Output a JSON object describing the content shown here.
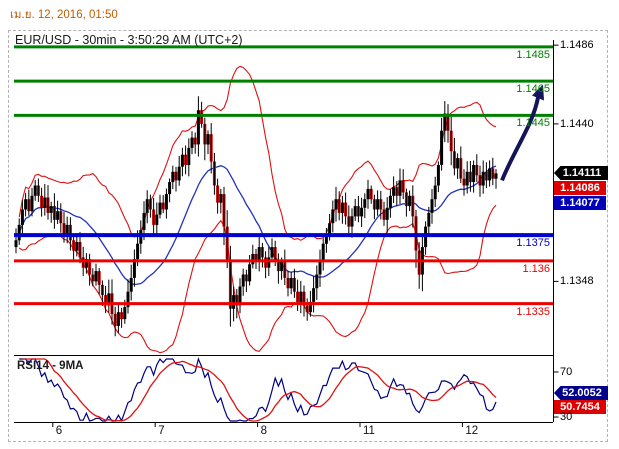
{
  "header": {
    "datetime": "เม.ย. 12, 2016, 01:50"
  },
  "colors": {
    "green_level": "#008000",
    "red_level": "#ee0000",
    "blue_level": "#0000cc",
    "band_red": "#dd1111",
    "mid_blue": "#2233bb",
    "candle_up": "#000000",
    "candle_down": "#cc0000",
    "rsi_line": "#000080",
    "rsi_ma": "#dd1111",
    "axis": "#000000",
    "arrow": "#14145a",
    "date_text": "#bf5b00"
  },
  "chart_data": {
    "type": "candlestick",
    "title": "EUR/USD - 30min - 3:50:29 AM (UTC+2)",
    "symbol": "EUR/USD",
    "timeframe": "30min",
    "ylim": [
      1.1305,
      1.1489
    ],
    "y_axis_ticks": [
      {
        "label": "1.1486",
        "value": 1.1486
      },
      {
        "label": "1.1440",
        "value": 1.144
      },
      {
        "label": "1.1348",
        "value": 1.1348
      }
    ],
    "x_axis_ticks": [
      {
        "label": "6",
        "index": 12
      },
      {
        "label": "7",
        "index": 44
      },
      {
        "label": "8",
        "index": 76
      },
      {
        "label": "11",
        "index": 108
      },
      {
        "label": "12",
        "index": 140
      }
    ],
    "closes": [
      1.1372,
      1.1381,
      1.139,
      1.1396,
      1.1389,
      1.1398,
      1.1404,
      1.1398,
      1.1391,
      1.1397,
      1.1388,
      1.1392,
      1.1384,
      1.1389,
      1.1382,
      1.1376,
      1.1381,
      1.1372,
      1.1366,
      1.1371,
      1.1362,
      1.1356,
      1.1361,
      1.1352,
      1.1348,
      1.1354,
      1.1346,
      1.134,
      1.1334,
      1.1341,
      1.1329,
      1.1322,
      1.133,
      1.1326,
      1.1333,
      1.1342,
      1.135,
      1.1361,
      1.137,
      1.1378,
      1.1388,
      1.1396,
      1.139,
      1.1381,
      1.1387,
      1.1394,
      1.139,
      1.1399,
      1.1406,
      1.1412,
      1.1407,
      1.1415,
      1.1422,
      1.1416,
      1.1426,
      1.1432,
      1.1428,
      1.1448,
      1.144,
      1.1428,
      1.1434,
      1.1418,
      1.1404,
      1.1394,
      1.1399,
      1.138,
      1.136,
      1.1332,
      1.134,
      1.1334,
      1.1345,
      1.1352,
      1.1348,
      1.1358,
      1.1364,
      1.136,
      1.1368,
      1.1362,
      1.1356,
      1.1362,
      1.1368,
      1.136,
      1.1354,
      1.136,
      1.135,
      1.1344,
      1.135,
      1.1342,
      1.1336,
      1.1342,
      1.1334,
      1.133,
      1.1336,
      1.1344,
      1.1352,
      1.136,
      1.137,
      1.1376,
      1.1382,
      1.139,
      1.1396,
      1.1388,
      1.1394,
      1.1386,
      1.138,
      1.1386,
      1.1392,
      1.1386,
      1.1391,
      1.1396,
      1.1402,
      1.1396,
      1.139,
      1.1396,
      1.139,
      1.1384,
      1.1391,
      1.1398,
      1.1403,
      1.1398,
      1.1407,
      1.14,
      1.1392,
      1.1398,
      1.1386,
      1.1366,
      1.1352,
      1.1368,
      1.138,
      1.1388,
      1.1396,
      1.1404,
      1.1416,
      1.1436,
      1.1446,
      1.1436,
      1.1424,
      1.1414,
      1.142,
      1.1408,
      1.1404,
      1.1412,
      1.1406,
      1.1416,
      1.141,
      1.1404,
      1.1412,
      1.1407,
      1.1414,
      1.1408,
      1.14111
    ],
    "levels": [
      {
        "value": 1.1485,
        "label": "1.1485",
        "color": "#008000",
        "width": 3
      },
      {
        "value": 1.1465,
        "label": "1.1465",
        "color": "#008000",
        "width": 3
      },
      {
        "value": 1.1445,
        "label": "1.1445",
        "color": "#008000",
        "width": 3
      },
      {
        "value": 1.1375,
        "label": "1.1375",
        "color": "#0000cc",
        "width": 4
      },
      {
        "value": 1.136,
        "label": "1.136",
        "color": "#ee0000",
        "width": 3
      },
      {
        "value": 1.1335,
        "label": "1.1335",
        "color": "#ee0000",
        "width": 3
      }
    ],
    "price_tags": [
      {
        "label": "1.14111",
        "bg": "black"
      },
      {
        "label": "1.14086",
        "bg": "red"
      },
      {
        "label": "1.14077",
        "bg": "blue"
      }
    ],
    "indicators": {
      "bollinger_period": 20,
      "bollinger_mult": 2,
      "rsi_period": 14,
      "rsi_ma": 9
    },
    "rsi": {
      "label": "RSI14 - 9MA",
      "ylim": [
        25.6,
        82.4
      ],
      "ticks": [
        {
          "label": "70",
          "value": 70
        },
        {
          "label": "30",
          "value": 30
        }
      ],
      "tags": [
        {
          "label": "52.0052",
          "bg": "blue"
        },
        {
          "label": "50.7454",
          "bg": "red"
        }
      ]
    },
    "annotation_arrow": {
      "from_price": 1.1407,
      "to_price": 1.1463,
      "color": "#14145a"
    }
  }
}
